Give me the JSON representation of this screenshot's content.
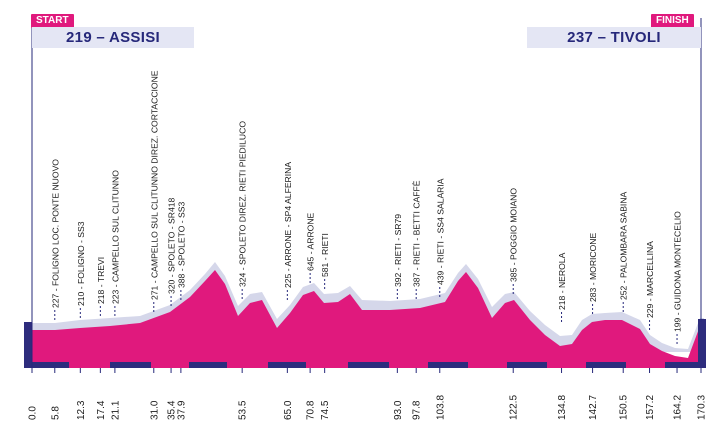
{
  "start": {
    "flag": "START",
    "label": "219 – ASSISI"
  },
  "finish": {
    "flag": "FINISH",
    "label": "237 – TIVOLI"
  },
  "colors": {
    "fill": "#e0197d",
    "shadow": "#d5d7ea",
    "band": "#2d2c7d",
    "line": "#26287a",
    "text": "#1a1a1a",
    "flag": "#e0197d",
    "banner": "#e4e6f4"
  },
  "km_marks": [
    "0.0",
    "5.8",
    "12.3",
    "17.4",
    "21.1",
    "31.0",
    "35.4",
    "37.9",
    "53.5",
    "65.0",
    "70.8",
    "74.5",
    "93.0",
    "97.8",
    "103.8",
    "122.5",
    "134.8",
    "142.7",
    "150.5",
    "157.2",
    "164.2",
    "170.3"
  ],
  "waypoints": [
    {
      "km": 5.8,
      "label": "227 - FOLIGNO LOC. PONTE NUOVO"
    },
    {
      "km": 12.3,
      "label": "210 - FOLIGNO - SS3"
    },
    {
      "km": 17.4,
      "label": "218 - TREVI"
    },
    {
      "km": 21.1,
      "label": "223 - CAMPELLO SUL CLITUNNO"
    },
    {
      "km": 31.0,
      "label": "271 - CAMPELLO SUL CLITUNNO DIREZ. CORTACCIONE"
    },
    {
      "km": 35.4,
      "label": "320 - SPOLETO - SR418"
    },
    {
      "km": 37.9,
      "label": "388 - SPOLETO - SS3"
    },
    {
      "km": 53.5,
      "label": "324 - SPOLETO DIREZ. RIETI PIEDILUCO"
    },
    {
      "km": 65.0,
      "label": "225 - ARRONE - SP4 ALFERINA"
    },
    {
      "km": 70.8,
      "label": "645 - ARRONE"
    },
    {
      "km": 74.5,
      "label": "581 - RIETI"
    },
    {
      "km": 93.0,
      "label": "392 - RIETI - SR79"
    },
    {
      "km": 97.8,
      "label": "387 - RIETI - BETTI CAFFÈ"
    },
    {
      "km": 103.8,
      "label": "439 - RIETI - SS4 SALARIA"
    },
    {
      "km": 122.5,
      "label": "385 - POGGIO MOIANO"
    },
    {
      "km": 134.8,
      "label": "218 - NEROLA"
    },
    {
      "km": 142.7,
      "label": "283 - MORICONE"
    },
    {
      "km": 150.5,
      "label": "252 - PALOMBARA SABINA"
    },
    {
      "km": 157.2,
      "label": "229 - MARCELLINA"
    },
    {
      "km": 164.2,
      "label": "199 - GUIDONA MONTECELIO"
    }
  ]
}
